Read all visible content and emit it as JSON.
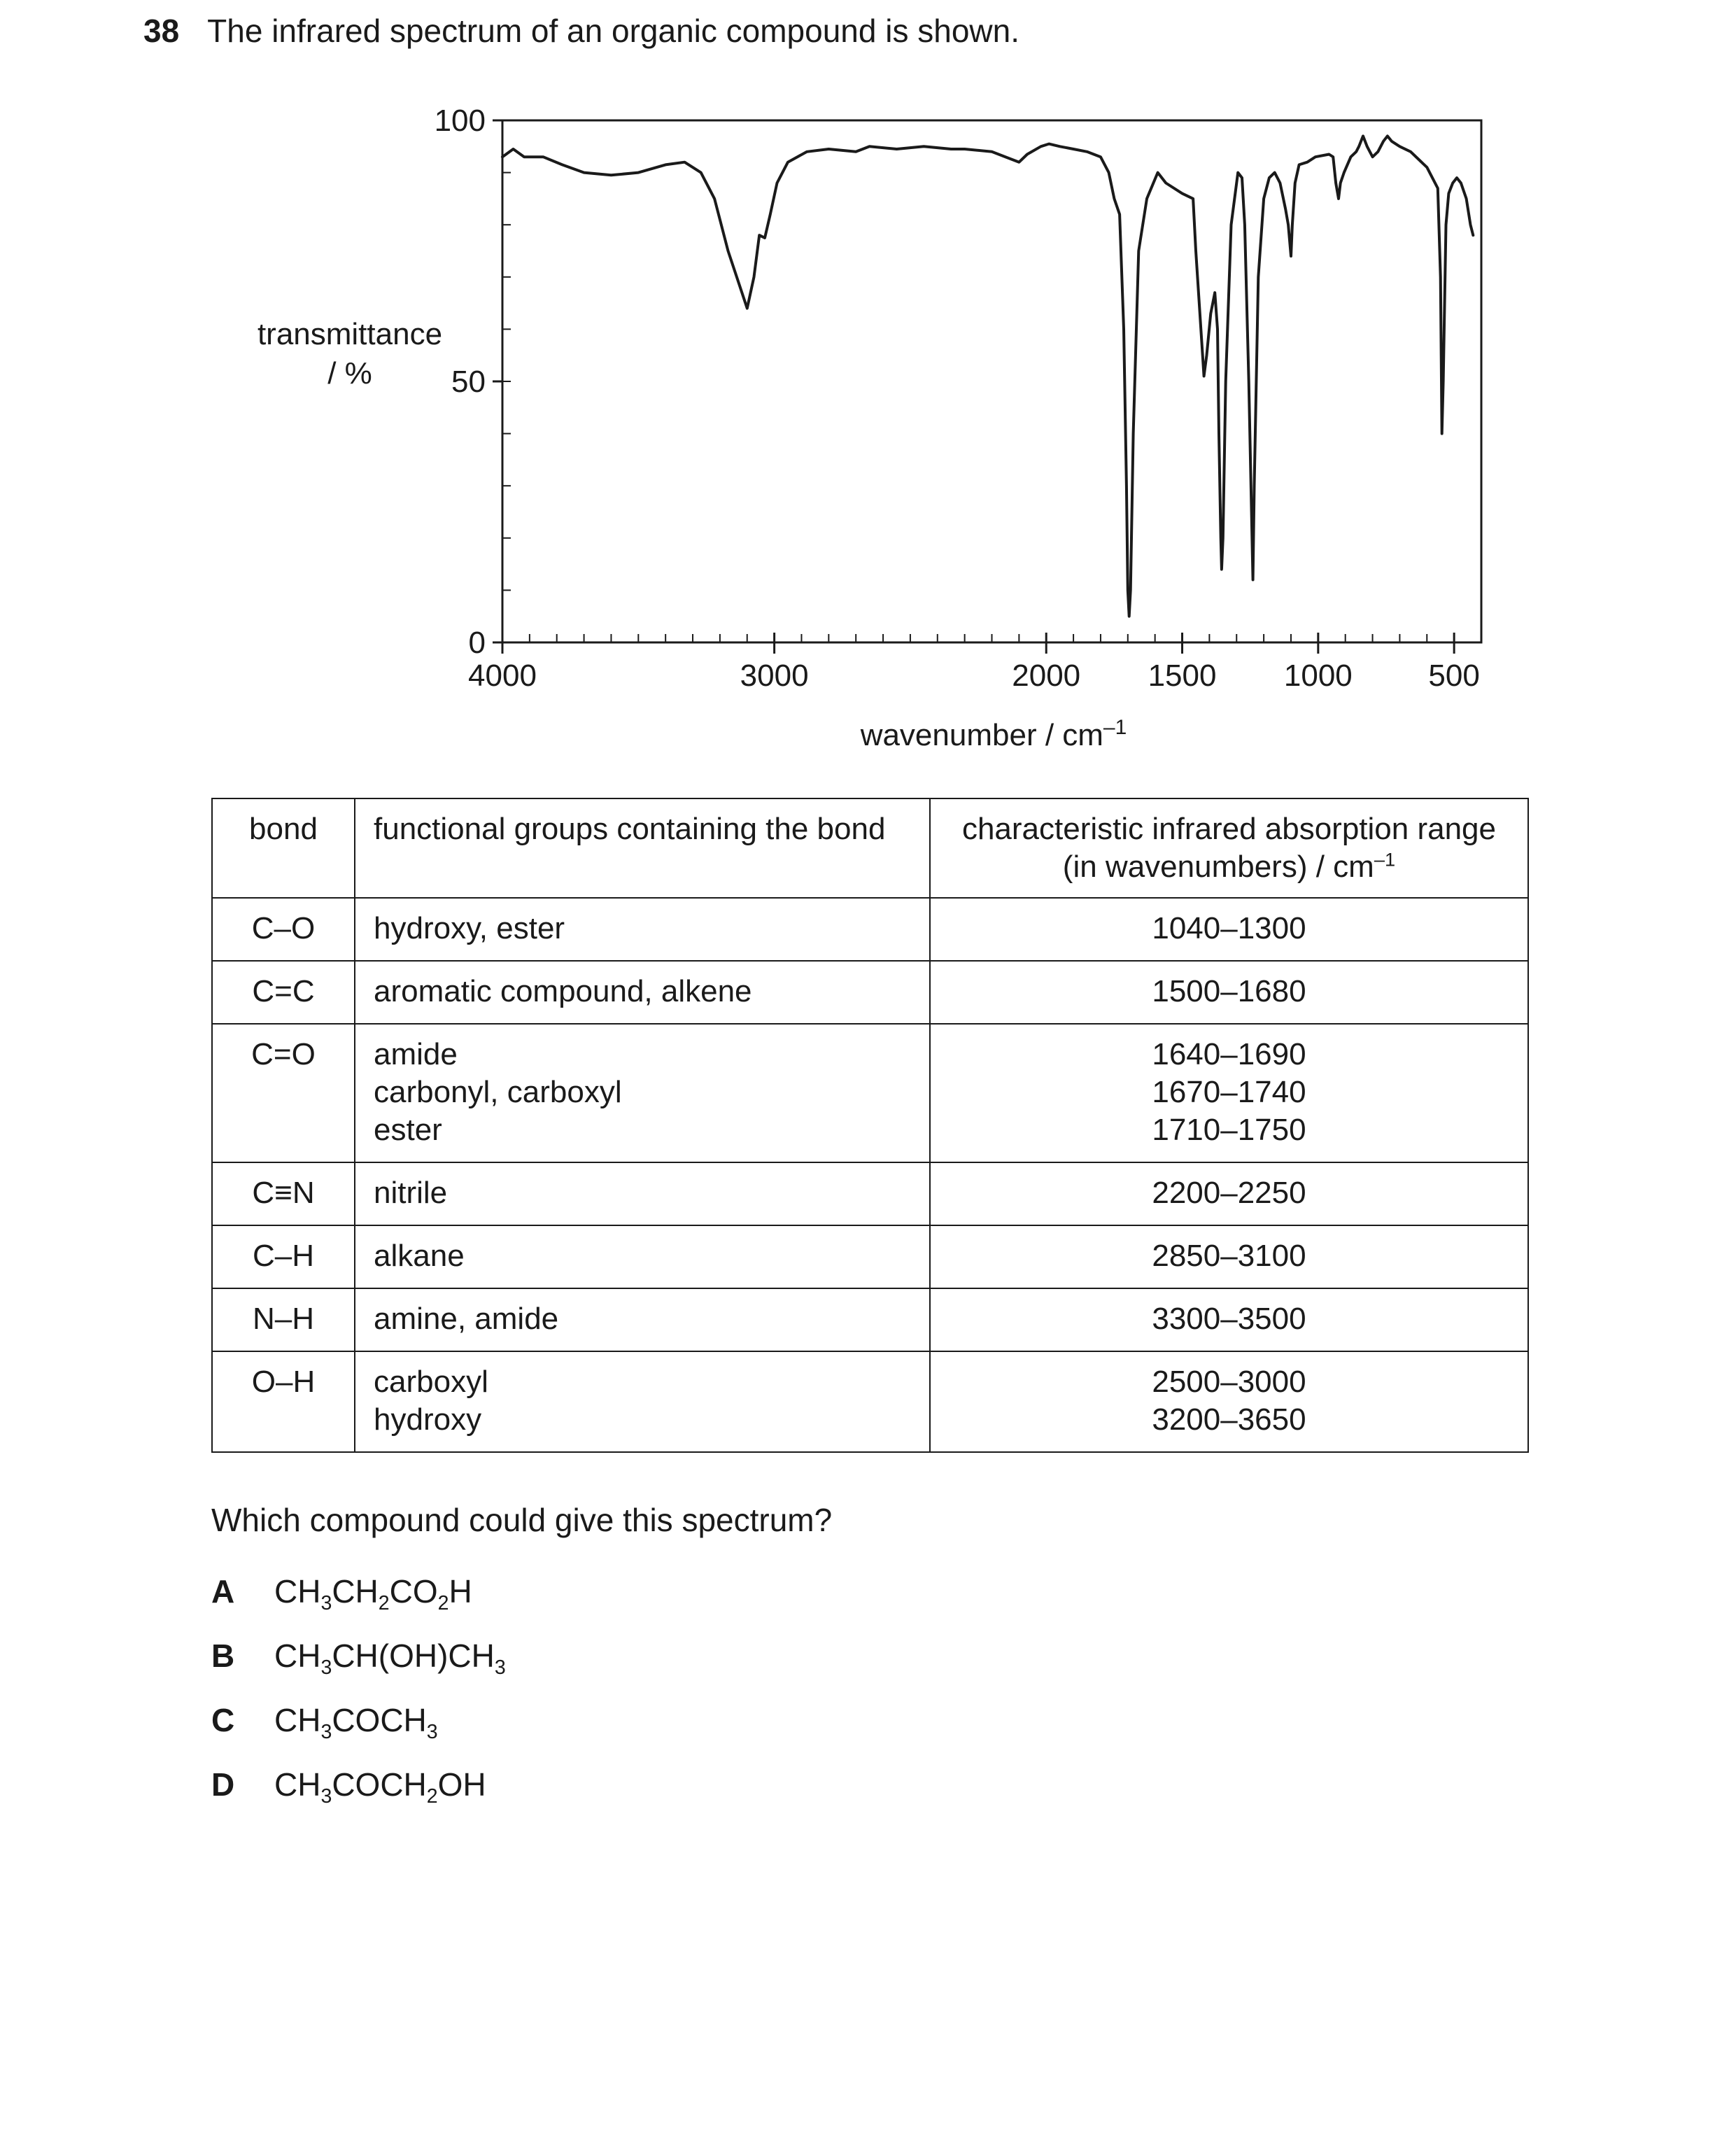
{
  "question": {
    "number": "38",
    "text": "The infrared spectrum of an organic compound is shown."
  },
  "chart_data": {
    "type": "line",
    "title": "",
    "xlabel": "wavenumber / cm",
    "xlabel_sup": "–1",
    "ylabel_line1": "transmittance",
    "ylabel_line2": "/ %",
    "xlim": [
      4000,
      400
    ],
    "ylim": [
      0,
      100
    ],
    "x_ticks": [
      "4000",
      "3000",
      "2000",
      "1500",
      "1000",
      "500"
    ],
    "y_ticks": [
      "100",
      "50",
      "0"
    ],
    "grid": false,
    "series": [
      {
        "points": [
          [
            4000,
            93
          ],
          [
            3960,
            94.5
          ],
          [
            3920,
            93
          ],
          [
            3850,
            93
          ],
          [
            3780,
            91.5
          ],
          [
            3700,
            90
          ],
          [
            3600,
            89.5
          ],
          [
            3500,
            90
          ],
          [
            3400,
            91.5
          ],
          [
            3330,
            92
          ],
          [
            3270,
            90
          ],
          [
            3220,
            85
          ],
          [
            3170,
            75
          ],
          [
            3100,
            64
          ],
          [
            3075,
            70
          ],
          [
            3055,
            78
          ],
          [
            3035,
            77.5
          ],
          [
            3015,
            82
          ],
          [
            2990,
            88
          ],
          [
            2950,
            92
          ],
          [
            2880,
            94
          ],
          [
            2800,
            94.5
          ],
          [
            2700,
            94
          ],
          [
            2650,
            95
          ],
          [
            2550,
            94.5
          ],
          [
            2450,
            95
          ],
          [
            2350,
            94.5
          ],
          [
            2300,
            94.5
          ],
          [
            2200,
            94
          ],
          [
            2150,
            93
          ],
          [
            2100,
            92
          ],
          [
            2070,
            93.5
          ],
          [
            2020,
            95
          ],
          [
            1990,
            95.5
          ],
          [
            1950,
            95
          ],
          [
            1900,
            94.5
          ],
          [
            1850,
            94
          ],
          [
            1800,
            93
          ],
          [
            1770,
            90
          ],
          [
            1750,
            85
          ],
          [
            1730,
            82
          ],
          [
            1715,
            60
          ],
          [
            1705,
            30
          ],
          [
            1700,
            10
          ],
          [
            1695,
            5
          ],
          [
            1690,
            10
          ],
          [
            1680,
            40
          ],
          [
            1660,
            75
          ],
          [
            1630,
            85
          ],
          [
            1590,
            90
          ],
          [
            1560,
            88
          ],
          [
            1500,
            86
          ],
          [
            1460,
            85
          ],
          [
            1450,
            75
          ],
          [
            1425,
            55
          ],
          [
            1420,
            51
          ],
          [
            1410,
            55
          ],
          [
            1395,
            63
          ],
          [
            1380,
            67
          ],
          [
            1370,
            60
          ],
          [
            1365,
            40
          ],
          [
            1358,
            20
          ],
          [
            1355,
            14
          ],
          [
            1350,
            20
          ],
          [
            1340,
            50
          ],
          [
            1320,
            80
          ],
          [
            1295,
            90
          ],
          [
            1280,
            89
          ],
          [
            1270,
            80
          ],
          [
            1255,
            50
          ],
          [
            1245,
            25
          ],
          [
            1240,
            12
          ],
          [
            1235,
            30
          ],
          [
            1220,
            70
          ],
          [
            1200,
            85
          ],
          [
            1180,
            89
          ],
          [
            1160,
            90
          ],
          [
            1140,
            88
          ],
          [
            1120,
            83
          ],
          [
            1110,
            80
          ],
          [
            1100,
            74
          ],
          [
            1095,
            80
          ],
          [
            1085,
            88
          ],
          [
            1070,
            91.5
          ],
          [
            1040,
            92
          ],
          [
            1010,
            93
          ],
          [
            960,
            93.5
          ],
          [
            945,
            93
          ],
          [
            935,
            88
          ],
          [
            925,
            85
          ],
          [
            918,
            88
          ],
          [
            905,
            90
          ],
          [
            880,
            93
          ],
          [
            860,
            94
          ],
          [
            850,
            95
          ],
          [
            835,
            97
          ],
          [
            820,
            95
          ],
          [
            800,
            93
          ],
          [
            780,
            94
          ],
          [
            760,
            96
          ],
          [
            745,
            97
          ],
          [
            730,
            96
          ],
          [
            700,
            95
          ],
          [
            660,
            94
          ],
          [
            600,
            91
          ],
          [
            560,
            87
          ],
          [
            550,
            70
          ],
          [
            545,
            40
          ],
          [
            540,
            50
          ],
          [
            530,
            80
          ],
          [
            520,
            86
          ],
          [
            505,
            88
          ],
          [
            490,
            89
          ],
          [
            475,
            88
          ],
          [
            455,
            85
          ],
          [
            440,
            80
          ],
          [
            430,
            78
          ]
        ]
      }
    ]
  },
  "table": {
    "headers": {
      "bond": "bond",
      "groups": "functional groups containing the bond",
      "range_line1": "characteristic infrared absorption range",
      "range_line2": "(in wavenumbers) / cm",
      "range_sup": "–1"
    },
    "rows": [
      {
        "bond": "C–O",
        "groups": [
          "hydroxy, ester"
        ],
        "ranges": [
          "1040–1300"
        ]
      },
      {
        "bond": "C=C",
        "groups": [
          "aromatic compound, alkene"
        ],
        "ranges": [
          "1500–1680"
        ]
      },
      {
        "bond": "C=O",
        "groups": [
          "amide",
          "carbonyl, carboxyl",
          "ester"
        ],
        "ranges": [
          "1640–1690",
          "1670–1740",
          "1710–1750"
        ]
      },
      {
        "bond": "C≡N",
        "groups": [
          "nitrile"
        ],
        "ranges": [
          "2200–2250"
        ]
      },
      {
        "bond": "C–H",
        "groups": [
          "alkane"
        ],
        "ranges": [
          "2850–3100"
        ]
      },
      {
        "bond": "N–H",
        "groups": [
          "amine, amide"
        ],
        "ranges": [
          "3300–3500"
        ]
      },
      {
        "bond": "O–H",
        "groups": [
          "carboxyl",
          "hydroxy"
        ],
        "ranges": [
          "2500–3000",
          "3200–3650"
        ]
      }
    ]
  },
  "prompt": "Which compound could give this spectrum?",
  "options": [
    {
      "letter": "A",
      "formula": [
        [
          "CH",
          ""
        ],
        [
          "3",
          "sub"
        ],
        [
          "CH",
          ""
        ],
        [
          "2",
          "sub"
        ],
        [
          "CO",
          ""
        ],
        [
          "2",
          "sub"
        ],
        [
          "H",
          ""
        ]
      ]
    },
    {
      "letter": "B",
      "formula": [
        [
          "CH",
          ""
        ],
        [
          "3",
          "sub"
        ],
        [
          "CH(OH)CH",
          ""
        ],
        [
          "3",
          "sub"
        ]
      ]
    },
    {
      "letter": "C",
      "formula": [
        [
          "CH",
          ""
        ],
        [
          "3",
          "sub"
        ],
        [
          "COCH",
          ""
        ],
        [
          "3",
          "sub"
        ]
      ]
    },
    {
      "letter": "D",
      "formula": [
        [
          "CH",
          ""
        ],
        [
          "3",
          "sub"
        ],
        [
          "COCH",
          ""
        ],
        [
          "2",
          "sub"
        ],
        [
          "OH",
          ""
        ]
      ]
    }
  ]
}
